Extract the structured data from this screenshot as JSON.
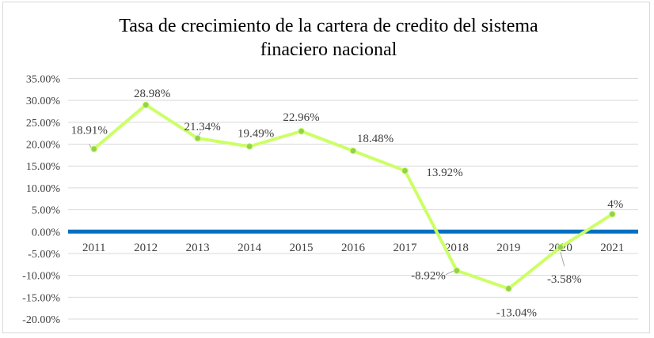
{
  "chart_data": {
    "type": "line",
    "title_line1": "Tasa de crecimiento de la cartera de credito del sistema",
    "title_line2": "finaciero nacional",
    "categories": [
      "2011",
      "2012",
      "2013",
      "2014",
      "2015",
      "2016",
      "2017",
      "2018",
      "2019",
      "2020",
      "2021"
    ],
    "series": [
      {
        "values": [
          18.91,
          28.98,
          21.34,
          19.49,
          22.96,
          18.48,
          13.92,
          -8.92,
          -13.04,
          -3.58,
          4
        ]
      }
    ],
    "data_labels": [
      "18.91%",
      "28.98%",
      "21.34%",
      "19.49%",
      "22.96%",
      "18.48%",
      "13.92%",
      "-8.92%",
      "-13.04%",
      "-3.58%",
      "4%"
    ],
    "y_ticks": [
      "35.00%",
      "30.00%",
      "25.00%",
      "20.00%",
      "15.00%",
      "10.00%",
      "5.00%",
      "0.00%",
      "-5.00%",
      "-10.00%",
      "-15.00%",
      "-20.00%"
    ],
    "ylim": [
      -20,
      35
    ],
    "grid": true,
    "legend": "none",
    "colors": {
      "line": "#ccff66",
      "marker": "#92d050",
      "zero_axis": "#0070c0",
      "grid": "#d9d9d9"
    }
  }
}
